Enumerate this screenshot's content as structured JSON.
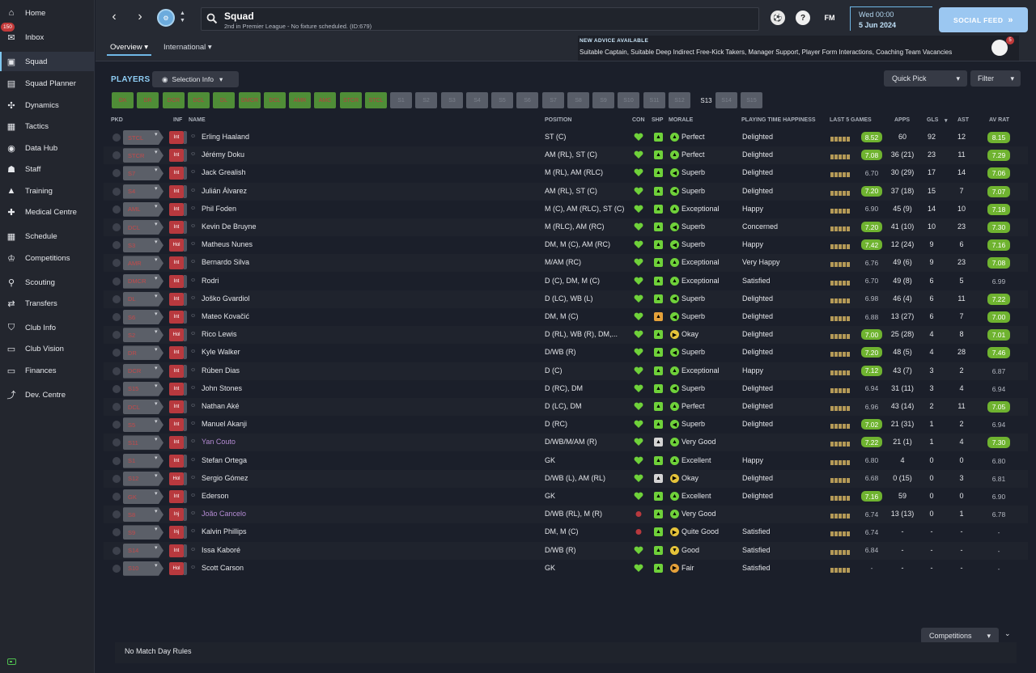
{
  "sidebar": {
    "items": [
      {
        "label": "Home",
        "icon": "home-icon",
        "glyph": "⌂"
      },
      {
        "label": "Inbox",
        "icon": "inbox-icon",
        "glyph": "✉",
        "badge": "150"
      },
      {
        "label": "Squad",
        "icon": "squad-icon",
        "glyph": "▣",
        "active": true
      },
      {
        "label": "Squad Planner",
        "icon": "squad-planner-icon",
        "glyph": "▤"
      },
      {
        "label": "Dynamics",
        "icon": "dynamics-icon",
        "glyph": "✣"
      },
      {
        "label": "Tactics",
        "icon": "tactics-icon",
        "glyph": "▦"
      },
      {
        "label": "Data Hub",
        "icon": "data-hub-icon",
        "glyph": "◉"
      },
      {
        "label": "Staff",
        "icon": "staff-icon",
        "glyph": "☗"
      },
      {
        "label": "Training",
        "icon": "training-icon",
        "glyph": "▲"
      },
      {
        "label": "Medical Centre",
        "icon": "medical-centre-icon",
        "glyph": "✚"
      },
      {
        "label": "Schedule",
        "icon": "schedule-icon",
        "glyph": "▦"
      },
      {
        "label": "Competitions",
        "icon": "competitions-icon",
        "glyph": "♔"
      },
      {
        "label": "Scouting",
        "icon": "scouting-icon",
        "glyph": "⚲"
      },
      {
        "label": "Transfers",
        "icon": "transfers-icon",
        "glyph": "⇄"
      },
      {
        "label": "Club Info",
        "icon": "club-info-icon",
        "glyph": "⛉"
      },
      {
        "label": "Club Vision",
        "icon": "club-vision-icon",
        "glyph": "▭"
      },
      {
        "label": "Finances",
        "icon": "finances-icon",
        "glyph": "▭"
      },
      {
        "label": "Dev. Centre",
        "icon": "dev-centre-icon",
        "glyph": "⤴"
      }
    ]
  },
  "header": {
    "title": "Squad",
    "subtitle": "2nd in Premier League - No fixture scheduled. (ID:679)",
    "fm_label": "FM",
    "help_label": "?",
    "date_day": "Wed 00:00",
    "date_date": "5 Jun 2024",
    "social_feed": "SOCIAL FEED",
    "social_feed_arrows": "»"
  },
  "subnav": {
    "tabs": [
      {
        "label": "Overview",
        "active": true
      },
      {
        "label": "International",
        "active": false
      }
    ]
  },
  "advice": {
    "title": "NEW ADVICE AVAILABLE",
    "text": "Suitable Captain, Suitable Deep Indirect Free-Kick Takers, Manager Support, Player Form Interactions, Coaching Team Vacancies",
    "count": "5"
  },
  "toolbar": {
    "players_title": "PLAYERS",
    "selection_info": "Selection Info",
    "quick_pick": "Quick Pick",
    "filter": "Filter"
  },
  "chips": [
    {
      "label": "GK",
      "color": "green"
    },
    {
      "label": "DR",
      "color": "green"
    },
    {
      "label": "DCR",
      "color": "green"
    },
    {
      "label": "DCL",
      "color": "green"
    },
    {
      "label": "DL",
      "color": "green"
    },
    {
      "label": "DMCR",
      "color": "green"
    },
    {
      "label": "DCL",
      "color": "green"
    },
    {
      "label": "AMR",
      "color": "green"
    },
    {
      "label": "AMC",
      "color": "green"
    },
    {
      "label": "STCR",
      "color": "green"
    },
    {
      "label": "STCL",
      "color": "green"
    },
    {
      "label": "S1",
      "color": "grey"
    },
    {
      "label": "S2",
      "color": "grey"
    },
    {
      "label": "S3",
      "color": "grey"
    },
    {
      "label": "S4",
      "color": "grey"
    },
    {
      "label": "S5",
      "color": "grey"
    },
    {
      "label": "S6",
      "color": "grey"
    },
    {
      "label": "S7",
      "color": "grey"
    },
    {
      "label": "S8",
      "color": "grey"
    },
    {
      "label": "S9",
      "color": "grey"
    },
    {
      "label": "S10",
      "color": "grey"
    },
    {
      "label": "S11",
      "color": "grey"
    },
    {
      "label": "S12",
      "color": "grey"
    },
    {
      "label": "S13",
      "color": "dark"
    },
    {
      "label": "S14",
      "color": "grey"
    },
    {
      "label": "S15",
      "color": "grey"
    }
  ],
  "columns": {
    "pkd": "PKD",
    "inf": "INF",
    "name": "NAME",
    "position": "POSITION",
    "con": "CON",
    "shp": "SHP",
    "morale": "MORALE",
    "pth": "PLAYING TIME HAPPINESS",
    "last5": "LAST 5 GAMES",
    "apps": "APPS",
    "gls": "GLS",
    "ast": "AST",
    "avrat": "AV RAT"
  },
  "players": [
    {
      "pkd": "STCL",
      "inf": "Int",
      "name": "Erling Haaland",
      "pos": "ST (C)",
      "morale": "Perfect",
      "happy": "Delighted",
      "last": "8.52",
      "apps": "60",
      "gls": "92",
      "ast": "12",
      "av": "8.15",
      "lhi": true,
      "ahi": true
    },
    {
      "pkd": "STCR",
      "inf": "Int",
      "name": "Jérémy Doku",
      "pos": "AM (RL), ST (C)",
      "morale": "Perfect",
      "happy": "Delighted",
      "last": "7.08",
      "apps": "36 (21)",
      "gls": "23",
      "ast": "11",
      "av": "7.29",
      "lhi": true,
      "ahi": true
    },
    {
      "pkd": "S7",
      "inf": "Int",
      "name": "Jack Grealish",
      "pos": "M (RL), AM (RLC)",
      "morale": "Superb",
      "happy": "Delighted",
      "last": "6.70",
      "apps": "30 (29)",
      "gls": "17",
      "ast": "14",
      "av": "7.06",
      "lhi": false,
      "ahi": true
    },
    {
      "pkd": "S4",
      "inf": "Int",
      "name": "Julián Álvarez",
      "pos": "AM (RL), ST (C)",
      "morale": "Superb",
      "happy": "Delighted",
      "last": "7.20",
      "apps": "37 (18)",
      "gls": "15",
      "ast": "7",
      "av": "7.07",
      "lhi": true,
      "ahi": true
    },
    {
      "pkd": "AML",
      "inf": "Int",
      "name": "Phil Foden",
      "pos": "M (C), AM (RLC), ST (C)",
      "morale": "Exceptional",
      "happy": "Happy",
      "last": "6.90",
      "apps": "45 (9)",
      "gls": "14",
      "ast": "10",
      "av": "7.18",
      "lhi": false,
      "ahi": true
    },
    {
      "pkd": "DCL",
      "inf": "Int",
      "name": "Kevin De Bruyne",
      "pos": "M (RLC), AM (RC)",
      "morale": "Superb",
      "happy": "Concerned",
      "last": "7.20",
      "apps": "41 (10)",
      "gls": "10",
      "ast": "23",
      "av": "7.30",
      "lhi": true,
      "ahi": true
    },
    {
      "pkd": "S3",
      "inf": "Hol",
      "name": "Matheus Nunes",
      "pos": "DM, M (C), AM (RC)",
      "morale": "Superb",
      "happy": "Happy",
      "last": "7.42",
      "apps": "12 (24)",
      "gls": "9",
      "ast": "6",
      "av": "7.16",
      "lhi": true,
      "ahi": true
    },
    {
      "pkd": "AMR",
      "inf": "Int",
      "name": "Bernardo Silva",
      "pos": "M/AM (RC)",
      "morale": "Exceptional",
      "happy": "Very Happy",
      "last": "6.76",
      "apps": "49 (6)",
      "gls": "9",
      "ast": "23",
      "av": "7.08",
      "lhi": false,
      "ahi": true
    },
    {
      "pkd": "DMCR",
      "inf": "Int",
      "name": "Rodri",
      "pos": "D (C), DM, M (C)",
      "morale": "Exceptional",
      "happy": "Satisfied",
      "last": "6.70",
      "apps": "49 (8)",
      "gls": "6",
      "ast": "5",
      "av": "6.99",
      "lhi": false,
      "ahi": false
    },
    {
      "pkd": "DL",
      "inf": "Int",
      "name": "Joško Gvardiol",
      "pos": "D (LC), WB (L)",
      "morale": "Superb",
      "happy": "Delighted",
      "last": "6.98",
      "apps": "46 (4)",
      "gls": "6",
      "ast": "11",
      "av": "7.22",
      "lhi": false,
      "ahi": true
    },
    {
      "pkd": "S6",
      "inf": "Int",
      "name": "Mateo Kovačić",
      "pos": "DM, M (C)",
      "morale": "Superb",
      "happy": "Delighted",
      "last": "6.88",
      "apps": "13 (27)",
      "gls": "6",
      "ast": "7",
      "av": "7.00",
      "lhi": false,
      "ahi": true
    },
    {
      "pkd": "S2",
      "inf": "Hol",
      "name": "Rico Lewis",
      "pos": "D (RL), WB (R), DM,...",
      "morale": "Okay",
      "happy": "Delighted",
      "last": "7.00",
      "apps": "25 (28)",
      "gls": "4",
      "ast": "8",
      "av": "7.01",
      "lhi": true,
      "ahi": true
    },
    {
      "pkd": "DR",
      "inf": "Int",
      "name": "Kyle Walker",
      "pos": "D/WB (R)",
      "morale": "Superb",
      "happy": "Delighted",
      "last": "7.20",
      "apps": "48 (5)",
      "gls": "4",
      "ast": "28",
      "av": "7.46",
      "lhi": true,
      "ahi": true
    },
    {
      "pkd": "DCR",
      "inf": "Int",
      "name": "Rúben Dias",
      "pos": "D (C)",
      "morale": "Exceptional",
      "happy": "Happy",
      "last": "7.12",
      "apps": "43 (7)",
      "gls": "3",
      "ast": "2",
      "av": "6.87",
      "lhi": true,
      "ahi": false
    },
    {
      "pkd": "S15",
      "inf": "Int",
      "name": "John Stones",
      "pos": "D (RC), DM",
      "morale": "Superb",
      "happy": "Delighted",
      "last": "6.94",
      "apps": "31 (11)",
      "gls": "3",
      "ast": "4",
      "av": "6.94",
      "lhi": false,
      "ahi": false
    },
    {
      "pkd": "DCL",
      "inf": "Int",
      "name": "Nathan Aké",
      "pos": "D (LC), DM",
      "morale": "Perfect",
      "happy": "Delighted",
      "last": "6.96",
      "apps": "43 (14)",
      "gls": "2",
      "ast": "11",
      "av": "7.05",
      "lhi": false,
      "ahi": true
    },
    {
      "pkd": "S5",
      "inf": "Int",
      "name": "Manuel Akanji",
      "pos": "D (RC)",
      "morale": "Superb",
      "happy": "Delighted",
      "last": "7.02",
      "apps": "21 (31)",
      "gls": "1",
      "ast": "2",
      "av": "6.94",
      "lhi": true,
      "ahi": false
    },
    {
      "pkd": "S11",
      "inf": "Int",
      "name": "Yan Couto",
      "pos": "D/WB/M/AM (R)",
      "morale": "Very Good",
      "happy": "",
      "last": "7.22",
      "apps": "21 (1)",
      "gls": "1",
      "ast": "4",
      "av": "7.30",
      "lhi": true,
      "ahi": true,
      "alt": true
    },
    {
      "pkd": "S1",
      "inf": "Int",
      "name": "Stefan Ortega",
      "pos": "GK",
      "morale": "Excellent",
      "happy": "Happy",
      "last": "6.80",
      "apps": "4",
      "gls": "0",
      "ast": "0",
      "av": "6.80",
      "lhi": false,
      "ahi": false
    },
    {
      "pkd": "S12",
      "inf": "Hol",
      "name": "Sergio Gómez",
      "pos": "D/WB (L), AM (RL)",
      "morale": "Okay",
      "happy": "Delighted",
      "last": "6.68",
      "apps": "0 (15)",
      "gls": "0",
      "ast": "3",
      "av": "6.81",
      "lhi": false,
      "ahi": false
    },
    {
      "pkd": "GK",
      "inf": "Int",
      "name": "Ederson",
      "pos": "GK",
      "morale": "Excellent",
      "happy": "Delighted",
      "last": "7.16",
      "apps": "59",
      "gls": "0",
      "ast": "0",
      "av": "6.90",
      "lhi": true,
      "ahi": false
    },
    {
      "pkd": "S8",
      "inf": "Inj",
      "name": "João Cancelo",
      "pos": "D/WB (RL), M (R)",
      "morale": "Very Good",
      "happy": "",
      "last": "6.74",
      "apps": "13 (13)",
      "gls": "0",
      "ast": "1",
      "av": "6.78",
      "lhi": false,
      "ahi": false,
      "alt": true
    },
    {
      "pkd": "S9",
      "inf": "Inj",
      "name": "Kalvin Phillips",
      "pos": "DM, M (C)",
      "morale": "Quite Good",
      "happy": "Satisfied",
      "last": "6.74",
      "apps": "-",
      "gls": "-",
      "ast": "-",
      "av": "-",
      "lhi": false,
      "ahi": false
    },
    {
      "pkd": "S14",
      "inf": "Int",
      "name": "Issa Kaboré",
      "pos": "D/WB (R)",
      "morale": "Good",
      "happy": "Satisfied",
      "last": "6.84",
      "apps": "-",
      "gls": "-",
      "ast": "-",
      "av": "-",
      "lhi": false,
      "ahi": false
    },
    {
      "pkd": "S10",
      "inf": "Hol",
      "name": "Scott Carson",
      "pos": "GK",
      "morale": "Fair",
      "happy": "Satisfied",
      "last": "-",
      "apps": "-",
      "gls": "-",
      "ast": "-",
      "av": "-",
      "lhi": false,
      "ahi": false
    }
  ],
  "footer": {
    "competitions": "Competitions",
    "rules": "No Match Day Rules"
  },
  "colors": {
    "accent": "#7ec6ee",
    "good": "#6fb330",
    "bad": "#b8393e"
  }
}
